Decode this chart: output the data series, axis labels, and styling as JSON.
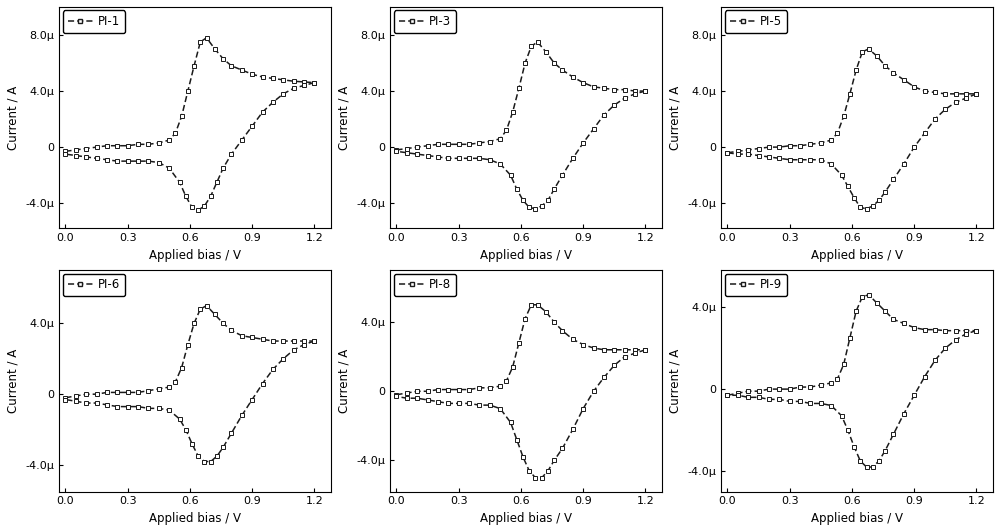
{
  "panels": [
    {
      "label": "PI-1",
      "ylim": [
        -5.8e-06,
        1e-05
      ],
      "yticks": [
        -4e-06,
        0.0,
        4e-06,
        8e-06
      ],
      "cv": {
        "fwd_x": [
          0.0,
          0.05,
          0.1,
          0.15,
          0.2,
          0.25,
          0.3,
          0.35,
          0.4,
          0.45,
          0.5,
          0.53,
          0.56,
          0.59,
          0.62,
          0.65,
          0.68,
          0.72,
          0.76,
          0.8,
          0.85,
          0.9,
          0.95,
          1.0,
          1.05,
          1.1,
          1.15,
          1.2
        ],
        "fwd_y": [
          -3e-07,
          -2e-07,
          -1e-07,
          0.0,
          1e-07,
          1e-07,
          1e-07,
          2e-07,
          2e-07,
          3e-07,
          5e-07,
          1e-06,
          2.2e-06,
          4e-06,
          5.8e-06,
          7.5e-06,
          7.8e-06,
          7e-06,
          6.3e-06,
          5.8e-06,
          5.5e-06,
          5.2e-06,
          5e-06,
          4.9e-06,
          4.8e-06,
          4.7e-06,
          4.65e-06,
          4.6e-06
        ],
        "rev_x": [
          1.2,
          1.15,
          1.1,
          1.05,
          1.0,
          0.95,
          0.9,
          0.85,
          0.8,
          0.76,
          0.73,
          0.7,
          0.67,
          0.64,
          0.61,
          0.58,
          0.55,
          0.5,
          0.45,
          0.4,
          0.35,
          0.3,
          0.25,
          0.2,
          0.15,
          0.1,
          0.05,
          0.0
        ],
        "rev_y": [
          4.6e-06,
          4.4e-06,
          4.2e-06,
          3.8e-06,
          3.2e-06,
          2.5e-06,
          1.5e-06,
          5e-07,
          -5e-07,
          -1.5e-06,
          -2.5e-06,
          -3.5e-06,
          -4.2e-06,
          -4.5e-06,
          -4.3e-06,
          -3.5e-06,
          -2.5e-06,
          -1.5e-06,
          -1.1e-06,
          -1e-06,
          -1e-06,
          -1e-06,
          -1e-06,
          -9e-07,
          -8e-07,
          -7e-07,
          -6e-07,
          -5e-07
        ]
      }
    },
    {
      "label": "PI-3",
      "ylim": [
        -5.8e-06,
        1e-05
      ],
      "yticks": [
        -4e-06,
        0.0,
        4e-06,
        8e-06
      ],
      "cv": {
        "fwd_x": [
          0.0,
          0.05,
          0.1,
          0.15,
          0.2,
          0.25,
          0.3,
          0.35,
          0.4,
          0.45,
          0.5,
          0.53,
          0.56,
          0.59,
          0.62,
          0.65,
          0.68,
          0.72,
          0.76,
          0.8,
          0.85,
          0.9,
          0.95,
          1.0,
          1.05,
          1.1,
          1.15,
          1.2
        ],
        "fwd_y": [
          -2e-07,
          -1e-07,
          0.0,
          1e-07,
          2e-07,
          2e-07,
          2e-07,
          2e-07,
          3e-07,
          4e-07,
          6e-07,
          1.2e-06,
          2.5e-06,
          4.2e-06,
          6e-06,
          7.2e-06,
          7.5e-06,
          6.8e-06,
          6e-06,
          5.5e-06,
          5e-06,
          4.6e-06,
          4.3e-06,
          4.2e-06,
          4.1e-06,
          4.1e-06,
          4e-06,
          4e-06
        ],
        "rev_x": [
          1.2,
          1.15,
          1.1,
          1.05,
          1.0,
          0.95,
          0.9,
          0.85,
          0.8,
          0.76,
          0.73,
          0.7,
          0.67,
          0.64,
          0.61,
          0.58,
          0.55,
          0.5,
          0.45,
          0.4,
          0.35,
          0.3,
          0.25,
          0.2,
          0.15,
          0.1,
          0.05,
          0.0
        ],
        "rev_y": [
          4e-06,
          3.8e-06,
          3.5e-06,
          3e-06,
          2.3e-06,
          1.3e-06,
          3e-07,
          -8e-07,
          -2e-06,
          -3e-06,
          -3.8e-06,
          -4.2e-06,
          -4.4e-06,
          -4.3e-06,
          -3.8e-06,
          -3e-06,
          -2e-06,
          -1.2e-06,
          -9e-07,
          -8e-07,
          -8e-07,
          -8e-07,
          -8e-07,
          -7e-07,
          -6e-07,
          -5e-07,
          -4e-07,
          -3e-07
        ]
      }
    },
    {
      "label": "PI-5",
      "ylim": [
        -5.8e-06,
        1e-05
      ],
      "yticks": [
        -4e-06,
        0.0,
        4e-06,
        8e-06
      ],
      "cv": {
        "fwd_x": [
          0.0,
          0.05,
          0.1,
          0.15,
          0.2,
          0.25,
          0.3,
          0.35,
          0.4,
          0.45,
          0.5,
          0.53,
          0.56,
          0.59,
          0.62,
          0.65,
          0.68,
          0.72,
          0.76,
          0.8,
          0.85,
          0.9,
          0.95,
          1.0,
          1.05,
          1.1,
          1.15,
          1.2
        ],
        "fwd_y": [
          -4e-07,
          -3e-07,
          -2e-07,
          -1e-07,
          0.0,
          0.0,
          1e-07,
          1e-07,
          2e-07,
          3e-07,
          5e-07,
          1e-06,
          2.2e-06,
          3.8e-06,
          5.5e-06,
          6.8e-06,
          7e-06,
          6.5e-06,
          5.8e-06,
          5.3e-06,
          4.8e-06,
          4.3e-06,
          4e-06,
          3.9e-06,
          3.8e-06,
          3.8e-06,
          3.8e-06,
          3.8e-06
        ],
        "rev_x": [
          1.2,
          1.15,
          1.1,
          1.05,
          1.0,
          0.95,
          0.9,
          0.85,
          0.8,
          0.76,
          0.73,
          0.7,
          0.67,
          0.64,
          0.61,
          0.58,
          0.55,
          0.5,
          0.45,
          0.4,
          0.35,
          0.3,
          0.25,
          0.2,
          0.15,
          0.1,
          0.05,
          0.0
        ],
        "rev_y": [
          3.8e-06,
          3.5e-06,
          3.2e-06,
          2.7e-06,
          2e-06,
          1e-06,
          0.0,
          -1.2e-06,
          -2.3e-06,
          -3.2e-06,
          -3.8e-06,
          -4.2e-06,
          -4.4e-06,
          -4.3e-06,
          -3.6e-06,
          -2.8e-06,
          -2e-06,
          -1.2e-06,
          -9e-07,
          -9e-07,
          -9e-07,
          -9e-07,
          -8e-07,
          -7e-07,
          -6e-07,
          -5e-07,
          -5e-07,
          -4e-07
        ]
      }
    },
    {
      "label": "PI-6",
      "ylim": [
        -5.5e-06,
        7e-06
      ],
      "yticks": [
        -4e-06,
        0.0,
        4e-06
      ],
      "cv": {
        "fwd_x": [
          0.0,
          0.05,
          0.1,
          0.15,
          0.2,
          0.25,
          0.3,
          0.35,
          0.4,
          0.45,
          0.5,
          0.53,
          0.56,
          0.59,
          0.62,
          0.65,
          0.68,
          0.72,
          0.76,
          0.8,
          0.85,
          0.9,
          0.95,
          1.0,
          1.05,
          1.1,
          1.15,
          1.2
        ],
        "fwd_y": [
          -2e-07,
          -1e-07,
          0.0,
          0.0,
          1e-07,
          1e-07,
          1e-07,
          1e-07,
          2e-07,
          3e-07,
          4e-07,
          7e-07,
          1.5e-06,
          2.8e-06,
          4e-06,
          4.8e-06,
          5e-06,
          4.5e-06,
          4e-06,
          3.6e-06,
          3.3e-06,
          3.2e-06,
          3.1e-06,
          3e-06,
          3e-06,
          3e-06,
          3e-06,
          3e-06
        ],
        "rev_x": [
          1.2,
          1.15,
          1.1,
          1.05,
          1.0,
          0.95,
          0.9,
          0.85,
          0.8,
          0.76,
          0.73,
          0.7,
          0.67,
          0.64,
          0.61,
          0.58,
          0.55,
          0.5,
          0.45,
          0.4,
          0.35,
          0.3,
          0.25,
          0.2,
          0.15,
          0.1,
          0.05,
          0.0
        ],
        "rev_y": [
          3e-06,
          2.8e-06,
          2.5e-06,
          2e-06,
          1.4e-06,
          6e-07,
          -3e-07,
          -1.2e-06,
          -2.2e-06,
          -3e-06,
          -3.5e-06,
          -3.8e-06,
          -3.8e-06,
          -3.5e-06,
          -2.8e-06,
          -2e-06,
          -1.4e-06,
          -9e-07,
          -8e-07,
          -8e-07,
          -7e-07,
          -7e-07,
          -7e-07,
          -6e-07,
          -5e-07,
          -5e-07,
          -4e-07,
          -3e-07
        ]
      }
    },
    {
      "label": "PI-8",
      "ylim": [
        -5.8e-06,
        7e-06
      ],
      "yticks": [
        -4e-06,
        0.0,
        4e-06
      ],
      "cv": {
        "fwd_x": [
          0.0,
          0.05,
          0.1,
          0.15,
          0.2,
          0.25,
          0.3,
          0.35,
          0.4,
          0.45,
          0.5,
          0.53,
          0.56,
          0.59,
          0.62,
          0.65,
          0.68,
          0.72,
          0.76,
          0.8,
          0.85,
          0.9,
          0.95,
          1.0,
          1.05,
          1.1,
          1.15,
          1.2
        ],
        "fwd_y": [
          -2e-07,
          -1e-07,
          0.0,
          0.0,
          1e-07,
          1e-07,
          1e-07,
          1e-07,
          2e-07,
          2e-07,
          3e-07,
          6e-07,
          1.4e-06,
          2.8e-06,
          4.2e-06,
          5e-06,
          5e-06,
          4.6e-06,
          4e-06,
          3.5e-06,
          3e-06,
          2.7e-06,
          2.5e-06,
          2.4e-06,
          2.4e-06,
          2.4e-06,
          2.4e-06,
          2.4e-06
        ],
        "rev_x": [
          1.2,
          1.15,
          1.1,
          1.05,
          1.0,
          0.95,
          0.9,
          0.85,
          0.8,
          0.76,
          0.73,
          0.7,
          0.67,
          0.64,
          0.61,
          0.58,
          0.55,
          0.5,
          0.45,
          0.4,
          0.35,
          0.3,
          0.25,
          0.2,
          0.15,
          0.1,
          0.05,
          0.0
        ],
        "rev_y": [
          2.4e-06,
          2.2e-06,
          2e-06,
          1.5e-06,
          8e-07,
          0.0,
          -1e-06,
          -2.2e-06,
          -3.3e-06,
          -4e-06,
          -4.6e-06,
          -5e-06,
          -5e-06,
          -4.6e-06,
          -3.8e-06,
          -2.8e-06,
          -1.8e-06,
          -1e-06,
          -8e-07,
          -8e-07,
          -7e-07,
          -7e-07,
          -7e-07,
          -6e-07,
          -5e-07,
          -4e-07,
          -4e-07,
          -3e-07
        ]
      }
    },
    {
      "label": "PI-9",
      "ylim": [
        -5e-06,
        5.8e-06
      ],
      "yticks": [
        -4e-06,
        0.0,
        4e-06
      ],
      "cv": {
        "fwd_x": [
          0.0,
          0.05,
          0.1,
          0.15,
          0.2,
          0.25,
          0.3,
          0.35,
          0.4,
          0.45,
          0.5,
          0.53,
          0.56,
          0.59,
          0.62,
          0.65,
          0.68,
          0.72,
          0.76,
          0.8,
          0.85,
          0.9,
          0.95,
          1.0,
          1.05,
          1.1,
          1.15,
          1.2
        ],
        "fwd_y": [
          -3e-07,
          -2e-07,
          -1e-07,
          -1e-07,
          0.0,
          0.0,
          0.0,
          1e-07,
          1e-07,
          2e-07,
          3e-07,
          5e-07,
          1.2e-06,
          2.5e-06,
          3.8e-06,
          4.5e-06,
          4.6e-06,
          4.2e-06,
          3.8e-06,
          3.4e-06,
          3.2e-06,
          3e-06,
          2.9e-06,
          2.9e-06,
          2.85e-06,
          2.85e-06,
          2.85e-06,
          2.85e-06
        ],
        "rev_x": [
          1.2,
          1.15,
          1.1,
          1.05,
          1.0,
          0.95,
          0.9,
          0.85,
          0.8,
          0.76,
          0.73,
          0.7,
          0.67,
          0.64,
          0.61,
          0.58,
          0.55,
          0.5,
          0.45,
          0.4,
          0.35,
          0.3,
          0.25,
          0.2,
          0.15,
          0.1,
          0.05,
          0.0
        ],
        "rev_y": [
          2.85e-06,
          2.7e-06,
          2.4e-06,
          2e-06,
          1.4e-06,
          6e-07,
          -3e-07,
          -1.2e-06,
          -2.2e-06,
          -3e-06,
          -3.5e-06,
          -3.8e-06,
          -3.8e-06,
          -3.5e-06,
          -2.8e-06,
          -2e-06,
          -1.3e-06,
          -8e-07,
          -7e-07,
          -7e-07,
          -6e-07,
          -6e-07,
          -5e-07,
          -5e-07,
          -4e-07,
          -4e-07,
          -3e-07,
          -3e-07
        ]
      }
    }
  ],
  "xlabel": "Applied bias / V",
  "ylabel": "Current / A",
  "xticks": [
    0.0,
    0.3,
    0.6,
    0.9,
    1.2
  ],
  "xlim": [
    -0.03,
    1.28
  ],
  "background": "#ffffff",
  "linecolor": "#1a1a1a",
  "linewidth": 1.1,
  "marker": "s",
  "markersize": 2.8,
  "dpi": 100
}
